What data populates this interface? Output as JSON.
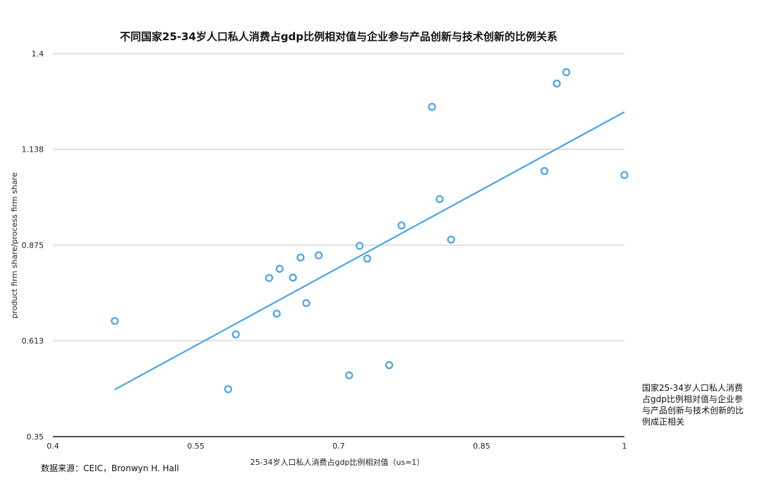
{
  "chart_data": {
    "type": "scatter",
    "title": "不同国家25-34岁人口私人消费占gdp比例相对值与企业参与产品创新与技术创新的比例关系",
    "xlabel": "25-34岁人口私人消费占gdp比例相对值（us=1）",
    "ylabel": "product  firm share/process firm share",
    "xlim": [
      0.4,
      1.0
    ],
    "ylim": [
      0.35,
      1.4
    ],
    "x_ticks": [
      "0.4",
      "0.55",
      "0.7",
      "0.85",
      "1"
    ],
    "y_ticks": [
      "0.35",
      "0.613",
      "0.875",
      "1.138",
      "1.4"
    ],
    "grid": true,
    "points": [
      {
        "x": 0.465,
        "y": 0.667
      },
      {
        "x": 0.584,
        "y": 0.48
      },
      {
        "x": 0.592,
        "y": 0.63
      },
      {
        "x": 0.627,
        "y": 0.785
      },
      {
        "x": 0.635,
        "y": 0.687
      },
      {
        "x": 0.638,
        "y": 0.81
      },
      {
        "x": 0.652,
        "y": 0.786
      },
      {
        "x": 0.66,
        "y": 0.841
      },
      {
        "x": 0.666,
        "y": 0.716
      },
      {
        "x": 0.679,
        "y": 0.847
      },
      {
        "x": 0.711,
        "y": 0.518
      },
      {
        "x": 0.722,
        "y": 0.873
      },
      {
        "x": 0.73,
        "y": 0.838
      },
      {
        "x": 0.753,
        "y": 0.546
      },
      {
        "x": 0.766,
        "y": 0.929
      },
      {
        "x": 0.798,
        "y": 1.254
      },
      {
        "x": 0.806,
        "y": 1.001
      },
      {
        "x": 0.818,
        "y": 0.89
      },
      {
        "x": 0.916,
        "y": 1.078
      },
      {
        "x": 0.929,
        "y": 1.318
      },
      {
        "x": 0.939,
        "y": 1.349
      },
      {
        "x": 1.0,
        "y": 1.067
      }
    ],
    "trendline": {
      "x": [
        0.465,
        1.0
      ],
      "y": [
        0.479,
        1.24
      ]
    },
    "point_color": "#4aa3e6",
    "line_color": "#4aa3e6"
  },
  "legend_note": "国家25-34岁人口私人消费占gdp比例相对值与企业参与产品创新与技术创新的比例成正相关",
  "source": "数据来源：CEIC，Bronwyn H. Hall"
}
